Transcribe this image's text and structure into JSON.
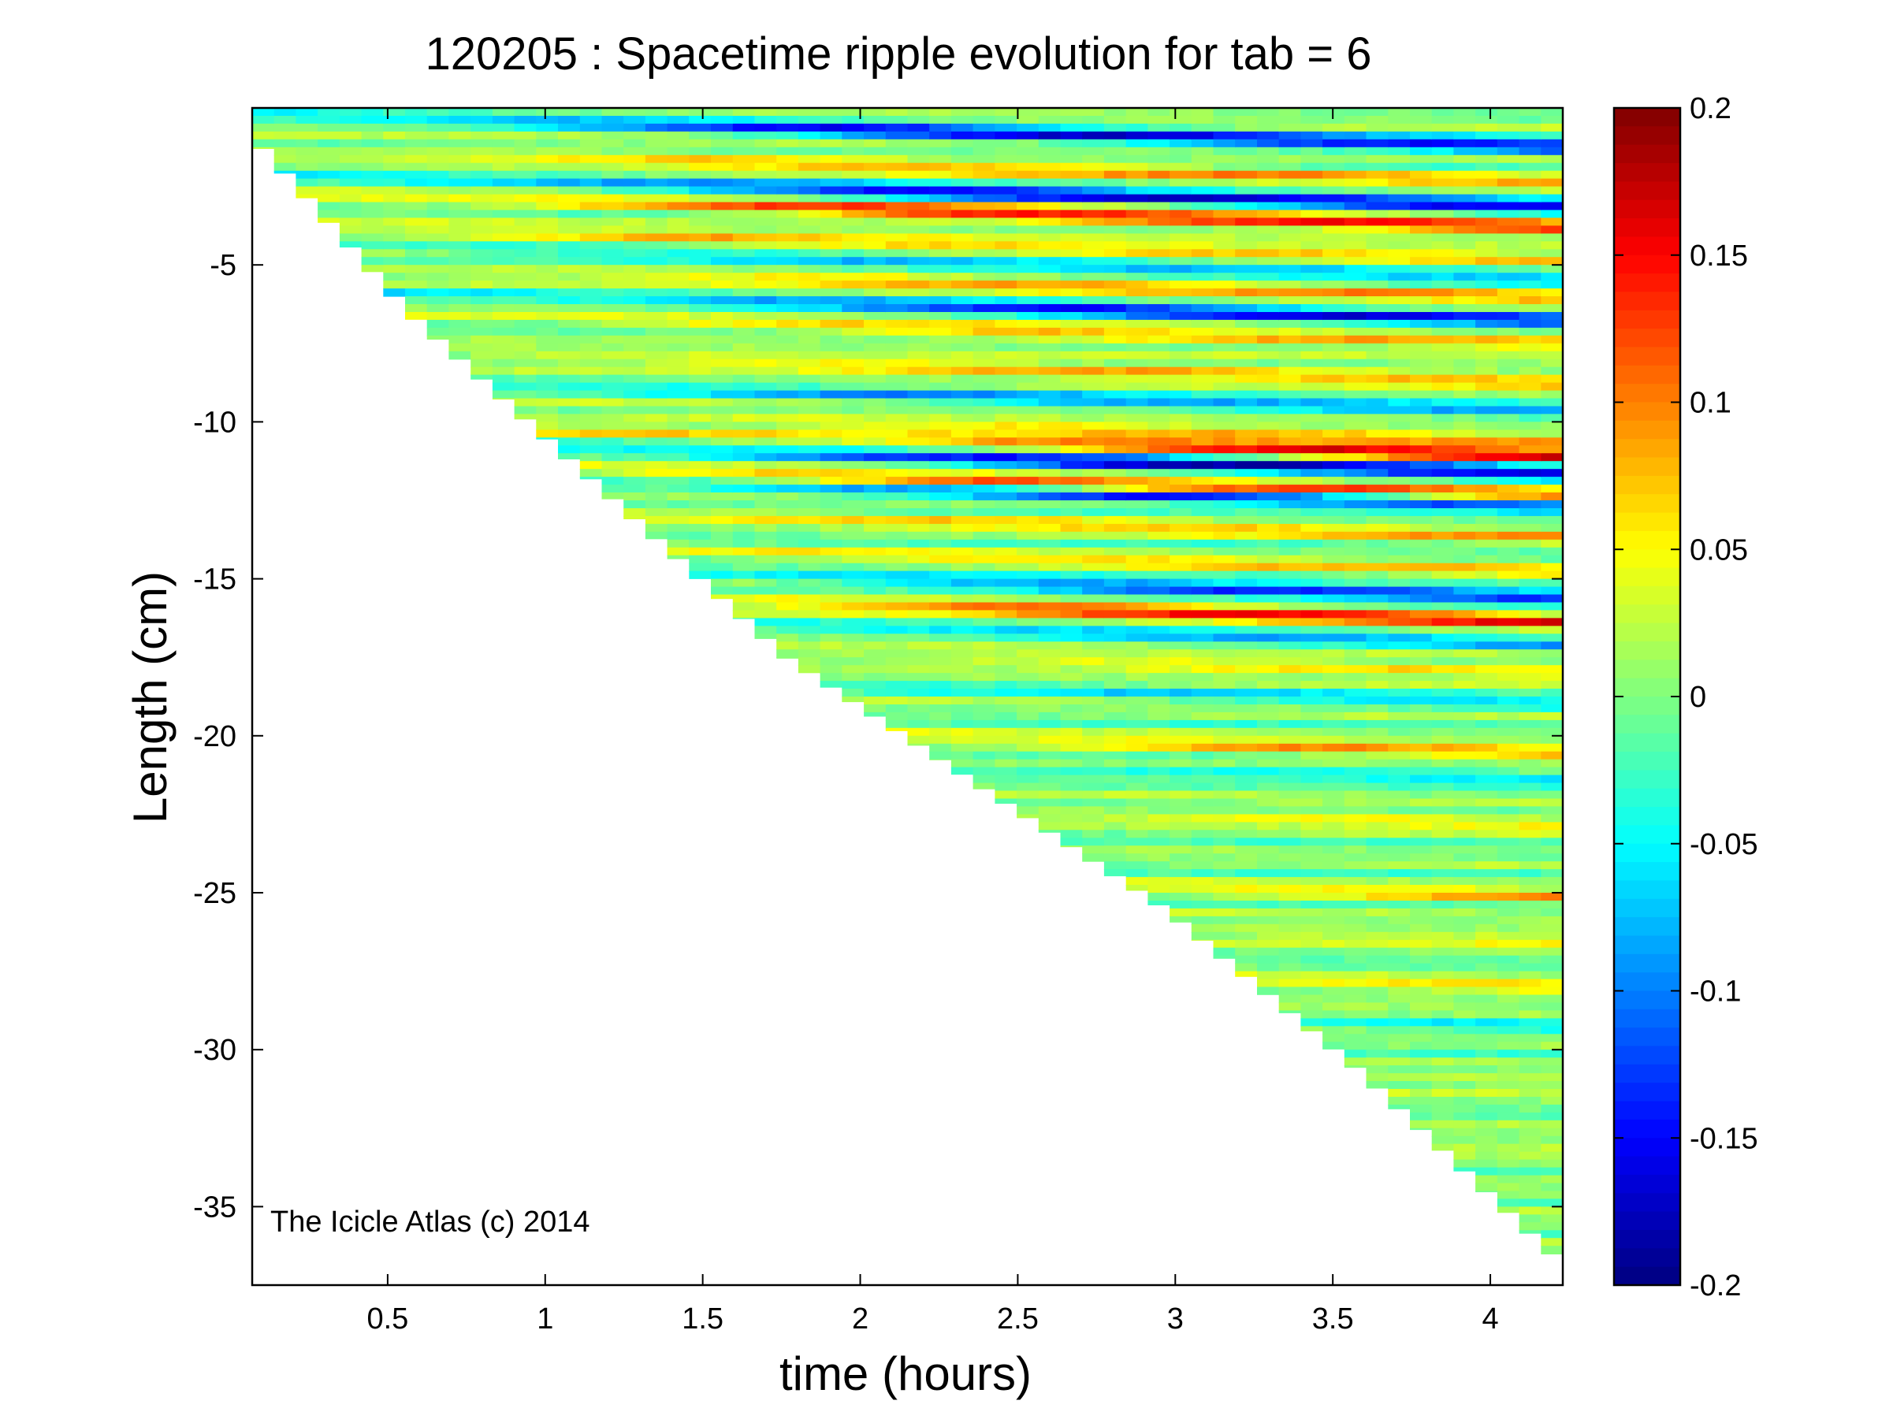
{
  "chart_data": {
    "type": "heatmap",
    "title": "120205 : Spacetime ripple evolution for tab = 6",
    "xlabel": "time (hours)",
    "ylabel": "Length (cm)",
    "xlim": [
      0.07,
      4.23
    ],
    "ylim": [
      -37.5,
      0
    ],
    "x_ticks": [
      0.5,
      1,
      1.5,
      2,
      2.5,
      3,
      3.5,
      4
    ],
    "x_tick_labels": [
      "0.5",
      "1",
      "1.5",
      "2",
      "2.5",
      "3",
      "3.5",
      "4"
    ],
    "y_ticks": [
      -5,
      -10,
      -15,
      -20,
      -25,
      -30,
      -35
    ],
    "y_tick_labels": [
      "-5",
      "-10",
      "-15",
      "-20",
      "-25",
      "-30",
      "-35"
    ],
    "colorbar": {
      "colormap": "jet",
      "clim": [
        -0.2,
        0.2
      ],
      "ticks": [
        0.2,
        0.15,
        0.1,
        0.05,
        0,
        -0.05,
        -0.1,
        -0.15,
        -0.2
      ],
      "tick_labels": [
        "0.2",
        "0.15",
        "0.1",
        "0.05",
        "0",
        "-0.05",
        "-0.1",
        "-0.15",
        "-0.2"
      ]
    },
    "data_boundary": {
      "description": "icicle length grows with time; data exists only for y above the tip",
      "time_hours": [
        0.07,
        0.6,
        1.2,
        1.8,
        2.4,
        3.0,
        3.6,
        4.23
      ],
      "tip_length_cm": [
        -0.5,
        -6.5,
        -12.0,
        -17.5,
        -21.5,
        -25.5,
        -30.5,
        -36.5
      ]
    },
    "ripple_bands": [
      {
        "length_cm": -0.5,
        "peak": -0.15,
        "onset_hours": 1.2
      },
      {
        "length_cm": -1.5,
        "peak": 0.08,
        "onset_hours": 0.8
      },
      {
        "length_cm": -2.5,
        "peak": -0.16,
        "onset_hours": 1.5
      },
      {
        "length_cm": -3.1,
        "peak": 0.16,
        "onset_hours": 1.4
      },
      {
        "length_cm": -4.0,
        "peak": 0.09,
        "onset_hours": 0.8
      },
      {
        "length_cm": -4.6,
        "peak": -0.09,
        "onset_hours": 1.0
      },
      {
        "length_cm": -5.3,
        "peak": 0.09,
        "onset_hours": 1.3
      },
      {
        "length_cm": -6.2,
        "peak": -0.14,
        "onset_hours": 1.8
      },
      {
        "length_cm": -6.9,
        "peak": 0.09,
        "onset_hours": 1.6
      },
      {
        "length_cm": -8.0,
        "peak": 0.09,
        "onset_hours": 1.3
      },
      {
        "length_cm": -9.0,
        "peak": -0.08,
        "onset_hours": 1.5
      },
      {
        "length_cm": -10.0,
        "peak": 0.09,
        "onset_hours": 1.8
      },
      {
        "length_cm": -10.7,
        "peak": 0.16,
        "onset_hours": 2.6
      },
      {
        "length_cm": -11.1,
        "peak": -0.18,
        "onset_hours": 2.0
      },
      {
        "length_cm": -11.7,
        "peak": 0.15,
        "onset_hours": 1.6
      },
      {
        "length_cm": -12.1,
        "peak": -0.16,
        "onset_hours": 1.9
      },
      {
        "length_cm": -13.0,
        "peak": 0.07,
        "onset_hours": 1.6
      },
      {
        "length_cm": -14.2,
        "peak": 0.06,
        "onset_hours": 1.8
      },
      {
        "length_cm": -15.1,
        "peak": -0.15,
        "onset_hours": 2.2
      },
      {
        "length_cm": -15.8,
        "peak": 0.15,
        "onset_hours": 2.0
      },
      {
        "length_cm": -16.6,
        "peak": -0.07,
        "onset_hours": 2.2
      },
      {
        "length_cm": -17.5,
        "peak": 0.07,
        "onset_hours": 2.2
      },
      {
        "length_cm": -18.5,
        "peak": -0.05,
        "onset_hours": 2.3
      },
      {
        "length_cm": -20.2,
        "peak": 0.09,
        "onset_hours": 2.6
      },
      {
        "length_cm": -21.0,
        "peak": -0.06,
        "onset_hours": 2.7
      },
      {
        "length_cm": -22.5,
        "peak": 0.06,
        "onset_hours": 2.9
      },
      {
        "length_cm": -24.9,
        "peak": 0.08,
        "onset_hours": 3.2
      },
      {
        "length_cm": -26.3,
        "peak": 0.06,
        "onset_hours": 3.3
      },
      {
        "length_cm": -27.9,
        "peak": 0.08,
        "onset_hours": 3.5
      },
      {
        "length_cm": -29.2,
        "peak": -0.05,
        "onset_hours": 3.6
      },
      {
        "length_cm": -31.0,
        "peak": 0.05,
        "onset_hours": 3.8
      },
      {
        "length_cm": -33.0,
        "peak": 0.05,
        "onset_hours": 4.0
      }
    ]
  },
  "watermark": "The Icicle Atlas (c) 2014"
}
